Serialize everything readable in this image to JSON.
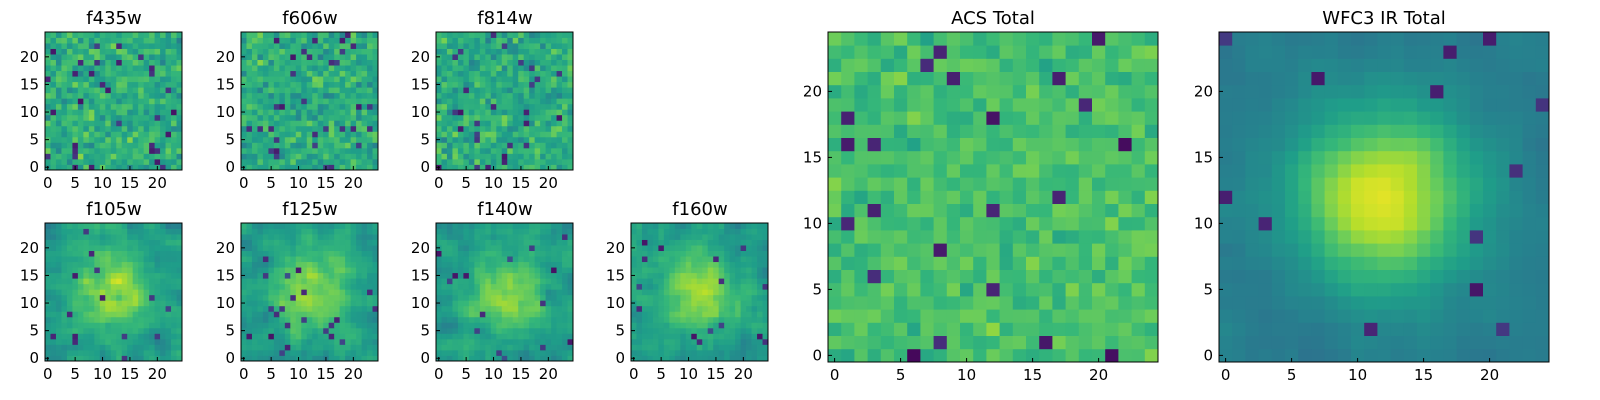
{
  "colormap": "viridis",
  "chart_data": [
    {
      "type": "heatmap",
      "title": "f435w",
      "texture": "noise",
      "seed": 11,
      "xlim": [
        -0.5,
        24.5
      ],
      "ylim": [
        -0.5,
        24.5
      ],
      "xticks": [
        0,
        5,
        10,
        15,
        20
      ],
      "yticks": [
        0,
        5,
        10,
        15,
        20
      ]
    },
    {
      "type": "heatmap",
      "title": "f606w",
      "texture": "noise",
      "seed": 23,
      "xlim": [
        -0.5,
        24.5
      ],
      "ylim": [
        -0.5,
        24.5
      ],
      "xticks": [
        0,
        5,
        10,
        15,
        20
      ],
      "yticks": [
        0,
        5,
        10,
        15,
        20
      ]
    },
    {
      "type": "heatmap",
      "title": "f814w",
      "texture": "noise",
      "seed": 37,
      "xlim": [
        -0.5,
        24.5
      ],
      "ylim": [
        -0.5,
        24.5
      ],
      "xticks": [
        0,
        5,
        10,
        15,
        20
      ],
      "yticks": [
        0,
        5,
        10,
        15,
        20
      ]
    },
    {
      "type": "heatmap",
      "title": "f105w",
      "texture": "blob",
      "seed": 41,
      "xlim": [
        -0.5,
        24.5
      ],
      "ylim": [
        -0.5,
        24.5
      ],
      "xticks": [
        0,
        5,
        10,
        15,
        20
      ],
      "yticks": [
        0,
        5,
        10,
        15,
        20
      ]
    },
    {
      "type": "heatmap",
      "title": "f125w",
      "texture": "blob",
      "seed": 53,
      "xlim": [
        -0.5,
        24.5
      ],
      "ylim": [
        -0.5,
        24.5
      ],
      "xticks": [
        0,
        5,
        10,
        15,
        20
      ],
      "yticks": [
        0,
        5,
        10,
        15,
        20
      ]
    },
    {
      "type": "heatmap",
      "title": "f140w",
      "texture": "blob",
      "seed": 67,
      "xlim": [
        -0.5,
        24.5
      ],
      "ylim": [
        -0.5,
        24.5
      ],
      "xticks": [
        0,
        5,
        10,
        15,
        20
      ],
      "yticks": [
        0,
        5,
        10,
        15,
        20
      ]
    },
    {
      "type": "heatmap",
      "title": "f160w",
      "texture": "blob",
      "seed": 79,
      "xlim": [
        -0.5,
        24.5
      ],
      "ylim": [
        -0.5,
        24.5
      ],
      "xticks": [
        0,
        5,
        10,
        15,
        20
      ],
      "yticks": [
        0,
        5,
        10,
        15,
        20
      ]
    },
    {
      "type": "heatmap",
      "title": "ACS Total",
      "texture": "acs",
      "seed": 97,
      "xlim": [
        -0.5,
        24.5
      ],
      "ylim": [
        -0.5,
        24.5
      ],
      "xticks": [
        0,
        5,
        10,
        15,
        20
      ],
      "yticks": [
        0,
        5,
        10,
        15,
        20
      ]
    },
    {
      "type": "heatmap",
      "title": "WFC3 IR Total",
      "texture": "ir",
      "seed": 113,
      "xlim": [
        -0.5,
        24.5
      ],
      "ylim": [
        -0.5,
        24.5
      ],
      "xticks": [
        0,
        5,
        10,
        15,
        20
      ],
      "yticks": [
        0,
        5,
        10,
        15,
        20
      ]
    }
  ]
}
